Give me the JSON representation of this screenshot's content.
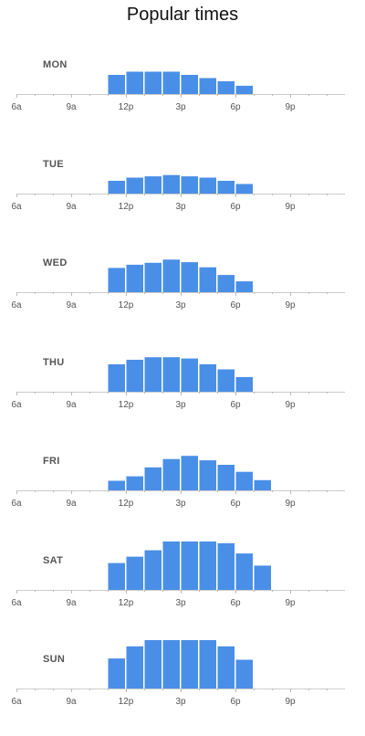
{
  "title": "Popular times",
  "colors": {
    "bar": "#4a8fe7",
    "baseline": "#cccccc",
    "tick": "#bbbbbb",
    "label": "#555555"
  },
  "chart_data": {
    "type": "bar",
    "title": "Popular times",
    "x_hours": [
      6,
      7,
      8,
      9,
      10,
      11,
      12,
      13,
      14,
      15,
      16,
      17,
      18,
      19,
      20,
      21,
      22,
      23
    ],
    "tick_labels": [
      {
        "hour": 6,
        "label": "6a"
      },
      {
        "hour": 9,
        "label": "9a"
      },
      {
        "hour": 12,
        "label": "12p"
      },
      {
        "hour": 15,
        "label": "3p"
      },
      {
        "hour": 18,
        "label": "6p"
      },
      {
        "hour": 21,
        "label": "9p"
      }
    ],
    "ylim": [
      0,
      100
    ],
    "grid": false,
    "days": [
      {
        "day": "MON",
        "start_hour": 11,
        "values": [
          30,
          35,
          35,
          35,
          30,
          25,
          20,
          13
        ]
      },
      {
        "day": "TUE",
        "start_hour": 11,
        "values": [
          20,
          25,
          27,
          29,
          27,
          25,
          20,
          15
        ]
      },
      {
        "day": "WED",
        "start_hour": 11,
        "values": [
          38,
          43,
          46,
          51,
          47,
          39,
          27,
          17
        ]
      },
      {
        "day": "THU",
        "start_hour": 11,
        "values": [
          43,
          50,
          54,
          54,
          52,
          43,
          35,
          23
        ]
      },
      {
        "day": "FRI",
        "start_hour": 11,
        "values": [
          15,
          22,
          36,
          49,
          54,
          47,
          40,
          29,
          16
        ]
      },
      {
        "day": "SAT",
        "start_hour": 11,
        "values": [
          42,
          52,
          62,
          76,
          85,
          85,
          73,
          57,
          38
        ]
      },
      {
        "day": "SUN",
        "start_hour": 11,
        "values": [
          47,
          66,
          86,
          100,
          100,
          86,
          66,
          45
        ]
      }
    ]
  }
}
